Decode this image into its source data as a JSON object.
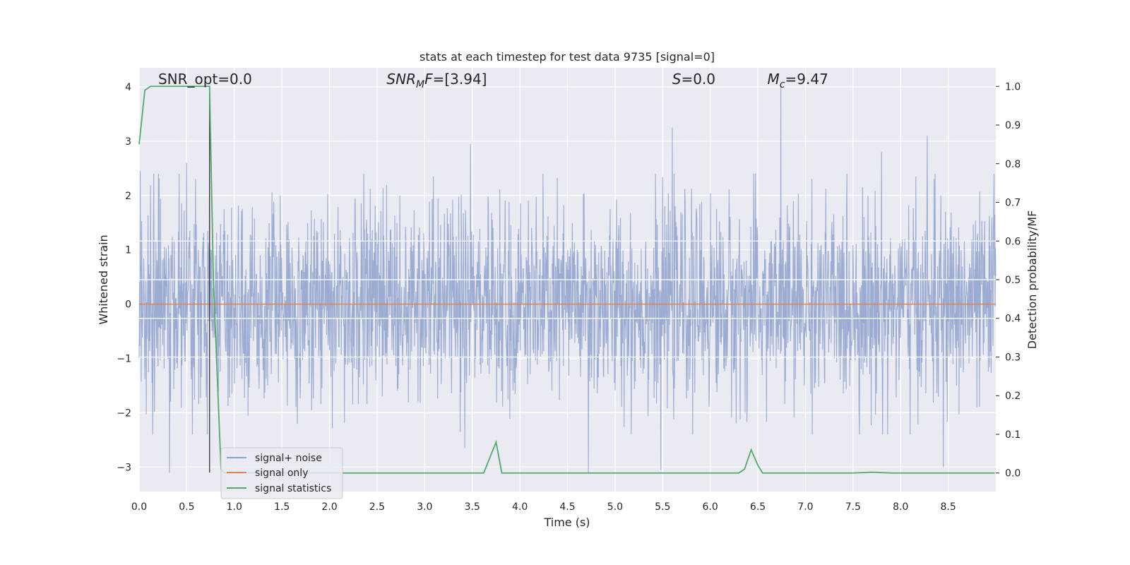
{
  "chart_data": {
    "type": "line",
    "title": "stats at each timestep for test data 9735 [signal=0]",
    "xlabel": "Time (s)",
    "ylabel": "Whitened strain",
    "ylabel_right": "Detection probability/MF",
    "xlim": [
      0.0,
      9.0
    ],
    "ylim": [
      -3.45,
      4.35
    ],
    "ylim_right": [
      -0.048,
      1.048
    ],
    "x_ticks": [
      "0.0",
      "0.5",
      "1.0",
      "1.5",
      "2.0",
      "2.5",
      "3.0",
      "3.5",
      "4.0",
      "4.5",
      "5.0",
      "5.5",
      "6.0",
      "6.5",
      "7.0",
      "7.5",
      "8.0",
      "8.5"
    ],
    "y_ticks": [
      "−3",
      "−2",
      "−1",
      "0",
      "1",
      "2",
      "3",
      "4"
    ],
    "y_ticks_right": [
      "0.0",
      "0.1",
      "0.2",
      "0.3",
      "0.4",
      "0.5",
      "0.6",
      "0.7",
      "0.8",
      "0.9",
      "1.0"
    ],
    "grid": true,
    "annotations": [
      {
        "base": "SNR_opt=0.0",
        "sub": "",
        "tail": "",
        "x": 0.2,
        "y": 4.1
      },
      {
        "base": "SNR",
        "sub": "M",
        "tail": "F=[3.94]",
        "x": 2.6,
        "y": 4.1,
        "italic": true
      },
      {
        "base": "S",
        "sub": "",
        "tail": "=0.0",
        "x": 5.6,
        "y": 4.1,
        "italic": true
      },
      {
        "base": "M",
        "sub": "c",
        "tail": "=9.47",
        "x": 6.6,
        "y": 4.1,
        "italic": true
      }
    ],
    "vline": {
      "x": 0.74,
      "y_from": -3.1,
      "y_to": 4.0
    },
    "legend": {
      "placement": "lower-left"
    },
    "series": [
      {
        "name": "signal+ noise",
        "color": "#8da0cb",
        "kind": "noise",
        "amplitude_sigma": 0.9,
        "peaks": [
          {
            "x": 0.01,
            "y": 2.45
          },
          {
            "x": 0.32,
            "y": -3.1
          },
          {
            "x": 0.5,
            "y": 2.6
          },
          {
            "x": 0.74,
            "y": 2.3
          },
          {
            "x": 3.48,
            "y": 2.95
          },
          {
            "x": 3.42,
            "y": -2.65
          },
          {
            "x": 4.72,
            "y": -3.1
          },
          {
            "x": 5.6,
            "y": 3.25
          },
          {
            "x": 5.48,
            "y": -3.05
          },
          {
            "x": 6.74,
            "y": 4.05
          },
          {
            "x": 7.8,
            "y": 2.8
          },
          {
            "x": 8.28,
            "y": 3.1
          },
          {
            "x": 8.45,
            "y": -3.0
          },
          {
            "x": 8.98,
            "y": 2.4
          }
        ]
      },
      {
        "name": "signal only",
        "color": "#dd8452",
        "x": [
          0.0,
          9.0
        ],
        "y": [
          0.0,
          0.0
        ]
      },
      {
        "name": "signal statistics",
        "color": "#55a868",
        "axis": "right",
        "x": [
          0.0,
          0.06,
          0.12,
          0.2,
          0.3,
          0.5,
          0.7,
          0.74,
          0.78,
          0.86,
          0.9,
          1.0,
          2.0,
          3.0,
          3.55,
          3.62,
          3.75,
          3.81,
          3.86,
          4.0,
          5.0,
          6.0,
          6.3,
          6.36,
          6.43,
          6.5,
          6.55,
          6.6,
          7.0,
          7.3,
          7.5,
          7.7,
          7.9,
          8.0,
          8.5,
          8.99
        ],
        "y": [
          0.85,
          0.99,
          1.0,
          1.0,
          1.0,
          1.0,
          1.0,
          1.0,
          0.5,
          0.01,
          0.0,
          0.0,
          0.0,
          0.0,
          0.0,
          0.0,
          0.08,
          0.0,
          0.0,
          0.0,
          0.0,
          0.0,
          0.0,
          0.01,
          0.06,
          0.02,
          0.0,
          0.0,
          0.0,
          0.0,
          0.0,
          0.002,
          0.0,
          0.0,
          0.0,
          0.0
        ]
      }
    ]
  }
}
